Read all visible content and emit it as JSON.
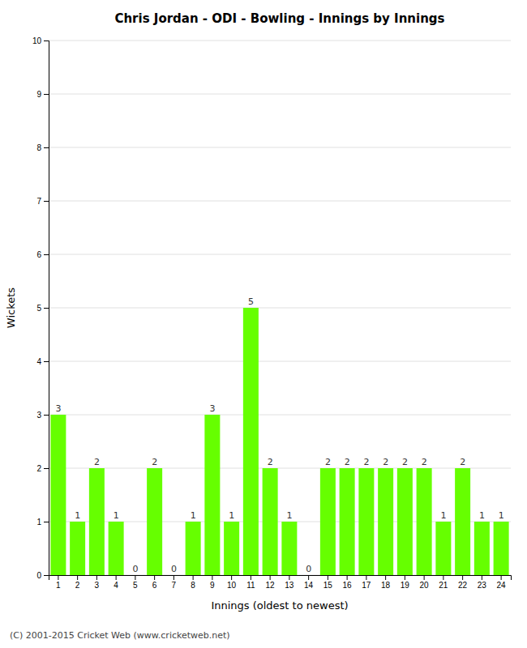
{
  "chart_data": {
    "type": "bar",
    "title": "Chris Jordan - ODI - Bowling - Innings by Innings",
    "xlabel": "Innings (oldest to newest)",
    "ylabel": "Wickets",
    "categories": [
      "1",
      "2",
      "3",
      "4",
      "5",
      "6",
      "7",
      "8",
      "9",
      "10",
      "11",
      "12",
      "13",
      "14",
      "15",
      "16",
      "17",
      "18",
      "19",
      "20",
      "21",
      "22",
      "23",
      "24"
    ],
    "values": [
      3,
      1,
      2,
      1,
      0,
      2,
      0,
      1,
      3,
      1,
      5,
      2,
      1,
      0,
      2,
      2,
      2,
      2,
      2,
      2,
      1,
      2,
      1,
      1
    ],
    "color": "#66ff00",
    "ylim": [
      0,
      10
    ],
    "yticks": [
      0,
      1,
      2,
      3,
      4,
      5,
      6,
      7,
      8,
      9,
      10
    ],
    "grid": true,
    "data_labels": true,
    "footer": "(C) 2001-2015 Cricket Web (www.cricketweb.net)"
  }
}
